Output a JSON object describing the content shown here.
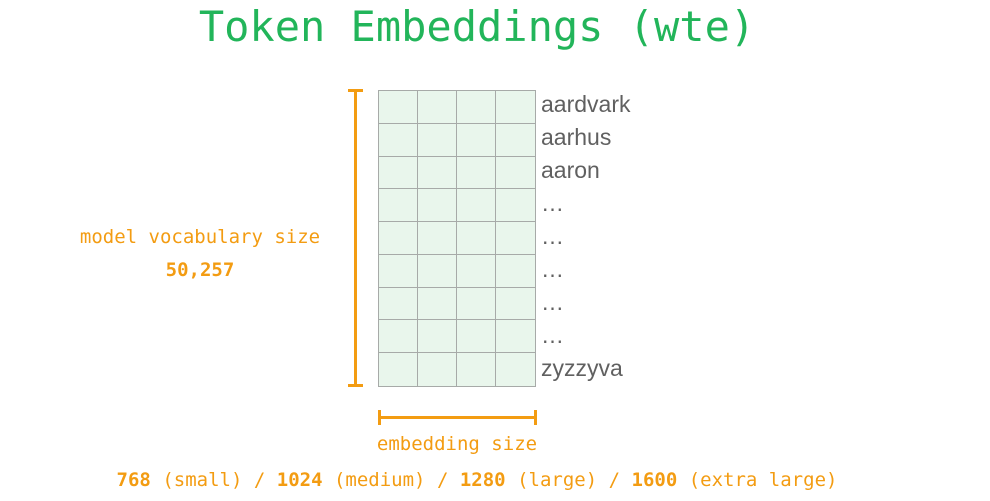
{
  "title": "Token Embeddings (wte)",
  "vocab": {
    "label": "model vocabulary size",
    "size": "50,257"
  },
  "tokens": [
    "aardvark",
    "aarhus",
    "aaron",
    "…",
    "…",
    "…",
    "…",
    "…",
    "zyzzyva"
  ],
  "embedding": {
    "label": "embedding size",
    "sizes": [
      {
        "value": "768",
        "name": "(small)"
      },
      {
        "value": "1024",
        "name": "(medium)"
      },
      {
        "value": "1280",
        "name": "(large)"
      },
      {
        "value": "1600",
        "name": "(extra large)"
      }
    ],
    "separator": "/"
  },
  "colors": {
    "title": "#22b55a",
    "accent": "#f39c12",
    "cell_fill": "#e9f6ec",
    "grid_line": "#a7aaa8",
    "token_text": "#606060"
  }
}
